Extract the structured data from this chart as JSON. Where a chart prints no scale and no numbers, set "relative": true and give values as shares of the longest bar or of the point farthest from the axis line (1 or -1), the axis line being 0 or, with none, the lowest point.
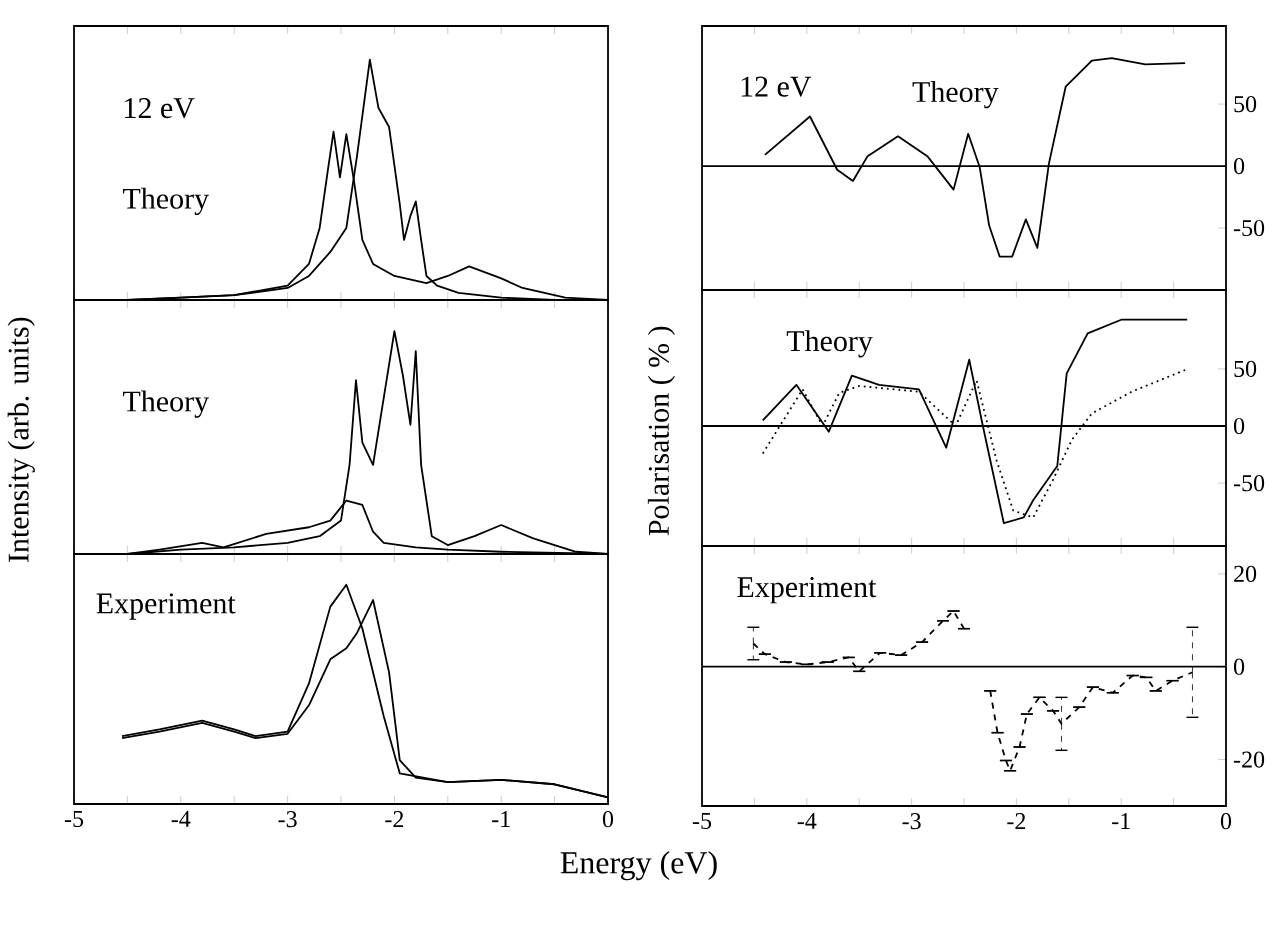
{
  "chart_data": [
    {
      "type": "line",
      "relative": true,
      "annotations": [
        "12 eV",
        "Theory"
      ],
      "xlim": [
        -5,
        0
      ],
      "xticks": [
        -5,
        {
          "value": -4.5,
          "label": null
        },
        -4,
        {
          "value": -3.5,
          "label": null
        },
        -3,
        {
          "value": -2.5,
          "label": null
        },
        -2,
        {
          "value": -1.5,
          "label": null
        },
        -1,
        {
          "value": -0.5,
          "label": null
        },
        0
      ],
      "tick_labels": false,
      "series": [
        {
          "color": "#000000",
          "x": [
            -4.5,
            -4,
            -3.5,
            -3,
            -2.8,
            -2.6,
            -2.45,
            -2.35,
            -2.23,
            -2.15,
            -2.05,
            -1.95,
            -1.91,
            -1.85,
            -1.8,
            -1.75,
            -1.7,
            -1.6,
            -1.4,
            -1,
            -0.5,
            0
          ],
          "values": [
            0,
            0.01,
            0.02,
            0.05,
            0.1,
            0.2,
            0.3,
            0.6,
            1,
            0.8,
            0.72,
            0.4,
            0.25,
            0.35,
            0.41,
            0.25,
            0.1,
            0.06,
            0.03,
            0.01,
            0,
            0
          ]
        },
        {
          "color": "#000000",
          "x": [
            -4.5,
            -4,
            -3.5,
            -3,
            -2.8,
            -2.7,
            -2.62,
            -2.57,
            -2.51,
            -2.45,
            -2.38,
            -2.3,
            -2.2,
            -2.0,
            -1.7,
            -1.5,
            -1.3,
            -1.0,
            -0.8,
            -0.4,
            0
          ],
          "values": [
            0,
            0.01,
            0.02,
            0.06,
            0.15,
            0.3,
            0.55,
            0.7,
            0.51,
            0.69,
            0.5,
            0.25,
            0.15,
            0.1,
            0.07,
            0.1,
            0.14,
            0.09,
            0.05,
            0.01,
            0
          ]
        }
      ]
    },
    {
      "type": "line",
      "relative": true,
      "annotations": [
        "Theory"
      ],
      "ylabel": "Intensity (arb. units)",
      "xlim": [
        -5,
        0
      ],
      "xticks": [
        -5,
        {
          "value": -4.5,
          "label": null
        },
        -4,
        {
          "value": -3.5,
          "label": null
        },
        -3,
        {
          "value": -2.5,
          "label": null
        },
        -2,
        {
          "value": -1.5,
          "label": null
        },
        -1,
        {
          "value": -0.5,
          "label": null
        },
        0
      ],
      "tick_labels": false,
      "series": [
        {
          "color": "#000000",
          "x": [
            -4.5,
            -4,
            -3.5,
            -3,
            -2.7,
            -2.5,
            -2.42,
            -2.36,
            -2.3,
            -2.2,
            -2.1,
            -2.0,
            -1.92,
            -1.85,
            -1.8,
            -1.75,
            -1.65,
            -1.5,
            -1.25,
            -1.0,
            -0.7,
            -0.3,
            0
          ],
          "values": [
            0,
            0.02,
            0.03,
            0.05,
            0.08,
            0.15,
            0.4,
            0.78,
            0.5,
            0.4,
            0.7,
            1,
            0.8,
            0.58,
            0.91,
            0.4,
            0.08,
            0.04,
            0.08,
            0.13,
            0.07,
            0.01,
            0
          ]
        },
        {
          "color": "#000000",
          "x": [
            -4.5,
            -4.2,
            -3.8,
            -3.6,
            -3.2,
            -2.8,
            -2.6,
            -2.45,
            -2.3,
            -2.2,
            -2.1,
            -1.8,
            -1.5,
            -1.0,
            0
          ],
          "values": [
            0,
            0.02,
            0.05,
            0.03,
            0.09,
            0.12,
            0.15,
            0.24,
            0.22,
            0.1,
            0.05,
            0.03,
            0.02,
            0.01,
            0
          ]
        }
      ]
    },
    {
      "type": "line",
      "relative": true,
      "annotations": [
        "Experiment"
      ],
      "xlabel": "Energy (eV)",
      "xlim": [
        -5,
        0
      ],
      "xticks": [
        -5,
        {
          "value": -4.5,
          "label": null
        },
        -4,
        {
          "value": -3.5,
          "label": null
        },
        -3,
        {
          "value": -2.5,
          "label": null
        },
        -2,
        {
          "value": -1.5,
          "label": null
        },
        -1,
        {
          "value": -0.5,
          "label": null
        },
        0
      ],
      "tick_labels": "x",
      "series": [
        {
          "color": "#000000",
          "x": [
            -4.55,
            -4.2,
            -3.8,
            -3.5,
            -3.3,
            -3.0,
            -2.8,
            -2.6,
            -2.45,
            -2.3,
            -2.1,
            -1.95,
            -1.5,
            -1.0,
            -0.5,
            0
          ],
          "values": [
            0.31,
            0.34,
            0.38,
            0.34,
            0.31,
            0.33,
            0.55,
            0.9,
            1,
            0.8,
            0.4,
            0.14,
            0.1,
            0.11,
            0.09,
            0.03
          ]
        },
        {
          "color": "#000000",
          "x": [
            -4.55,
            -4.2,
            -3.8,
            -3.5,
            -3.3,
            -3.0,
            -2.8,
            -2.6,
            -2.45,
            -2.35,
            -2.2,
            -2.05,
            -1.95,
            -1.8,
            -1.5,
            -1.0,
            -0.5,
            0
          ],
          "values": [
            0.3,
            0.33,
            0.37,
            0.33,
            0.3,
            0.32,
            0.45,
            0.66,
            0.71,
            0.78,
            0.93,
            0.6,
            0.2,
            0.12,
            0.1,
            0.11,
            0.09,
            0.03
          ]
        }
      ]
    },
    {
      "type": "line",
      "annotations": [
        "12 eV",
        "Theory"
      ],
      "xlim": [
        -5,
        0
      ],
      "xticks": [
        -5,
        {
          "value": -4.5,
          "label": null
        },
        -4,
        {
          "value": -3.5,
          "label": null
        },
        -3,
        {
          "value": -2.5,
          "label": null
        },
        -2,
        {
          "value": -1.5,
          "label": null
        },
        -1,
        {
          "value": -0.5,
          "label": null
        },
        0
      ],
      "ylim": [
        -100,
        113
      ],
      "yticks": [
        -50,
        0,
        50
      ],
      "tick_labels": "y",
      "ref_lines": [
        {
          "axis": "y",
          "value": 0
        }
      ],
      "series": [
        {
          "color": "#000000",
          "x": [
            -4.4,
            -3.97,
            -3.71,
            -3.56,
            -3.42,
            -3.13,
            -2.85,
            -2.6,
            -2.46,
            -2.35,
            -2.26,
            -2.16,
            -2.04,
            -1.91,
            -1.8,
            -1.69,
            -1.53,
            -1.28,
            -1.09,
            -0.77,
            -0.39
          ],
          "values": [
            9,
            40,
            -3,
            -12,
            8,
            24,
            8,
            -19,
            26,
            -1,
            -48,
            -73,
            -73,
            -43,
            -66,
            2,
            64,
            85,
            87,
            82,
            83
          ]
        }
      ]
    },
    {
      "type": "line",
      "annotations": [
        "Theory"
      ],
      "xlim": [
        -5,
        0
      ],
      "xticks": [
        -5,
        {
          "value": -4.5,
          "label": null
        },
        -4,
        {
          "value": -3.5,
          "label": null
        },
        -3,
        {
          "value": -2.5,
          "label": null
        },
        -2,
        {
          "value": -1.5,
          "label": null
        },
        -1,
        {
          "value": -0.5,
          "label": null
        },
        0
      ],
      "ylim": [
        -105,
        119
      ],
      "yticks": [
        -50,
        0,
        50
      ],
      "tick_labels": "y",
      "ylabel": "Polarisation ( % )",
      "ref_lines": [
        {
          "axis": "y",
          "value": 0
        }
      ],
      "series": [
        {
          "color": "#000000",
          "line_style": "solid",
          "x": [
            -4.42,
            -4.1,
            -3.79,
            -3.57,
            -3.31,
            -2.93,
            -2.67,
            -2.45,
            -2.32,
            -2.12,
            -1.93,
            -1.84,
            -1.61,
            -1.52,
            -1.32,
            -1.0,
            -0.37
          ],
          "values": [
            5,
            36,
            -5,
            44,
            36,
            32,
            -19,
            58,
            0,
            -85,
            -80,
            -65,
            -35,
            46,
            81,
            93,
            93
          ]
        },
        {
          "color": "#000000",
          "line_style": "dotted",
          "x": [
            -4.42,
            -4.04,
            -3.85,
            -3.69,
            -3.5,
            -2.93,
            -2.58,
            -2.38,
            -2.19,
            -2.03,
            -1.84,
            -1.65,
            -1.47,
            -1.28,
            -0.9,
            -0.39
          ],
          "values": [
            -24,
            32,
            0,
            29,
            35,
            30,
            0,
            40,
            -30,
            -74,
            -80,
            -47,
            -12,
            11,
            30,
            49
          ]
        }
      ]
    },
    {
      "type": "line",
      "annotations": [
        "Experiment"
      ],
      "xlim": [
        -5,
        0
      ],
      "xticks": [
        -5,
        {
          "value": -4.5,
          "label": null
        },
        -4,
        {
          "value": -3.5,
          "label": null
        },
        -3,
        {
          "value": -2.5,
          "label": null
        },
        -2,
        {
          "value": -1.5,
          "label": null
        },
        -1,
        {
          "value": -0.5,
          "label": null
        },
        0
      ],
      "ylim": [
        -30,
        26
      ],
      "yticks": [
        -20,
        0,
        20
      ],
      "ref_lines": [
        {
          "axis": "y",
          "value": 0
        }
      ],
      "series": [
        {
          "color": "#000000",
          "line_style": "dashed",
          "x": [
            -4.51,
            -4.4,
            -4.2,
            -4.0,
            -3.8,
            -3.6,
            -3.5,
            -3.3,
            -3.1,
            -2.9,
            -2.7,
            -2.6,
            -2.5,
            -2.38,
            -2.25,
            -2.18,
            -2.1,
            -2.06,
            -1.97,
            -1.9,
            -1.78,
            -1.65,
            -1.57,
            -1.4,
            -1.27,
            -1.08,
            -0.89,
            -0.76,
            -0.67,
            -0.51,
            -0.32
          ],
          "values": [
            5,
            2.7,
            1,
            0.5,
            1,
            2,
            -1,
            3,
            2.5,
            5.3,
            9.9,
            12,
            8.2,
            null,
            -5.2,
            -14.2,
            -20.2,
            -22.4,
            -17.3,
            -10.2,
            -6.6,
            -9.5,
            -12.3,
            -8.7,
            -4.4,
            -5.6,
            -1.9,
            -2.3,
            -5.2,
            -3,
            -1.2
          ],
          "errors": [
            3.5,
            null,
            null,
            null,
            null,
            null,
            null,
            null,
            null,
            null,
            null,
            null,
            null,
            null,
            null,
            null,
            null,
            null,
            null,
            null,
            null,
            null,
            5.7,
            null,
            null,
            null,
            null,
            null,
            null,
            null,
            9.7
          ]
        }
      ]
    }
  ]
}
